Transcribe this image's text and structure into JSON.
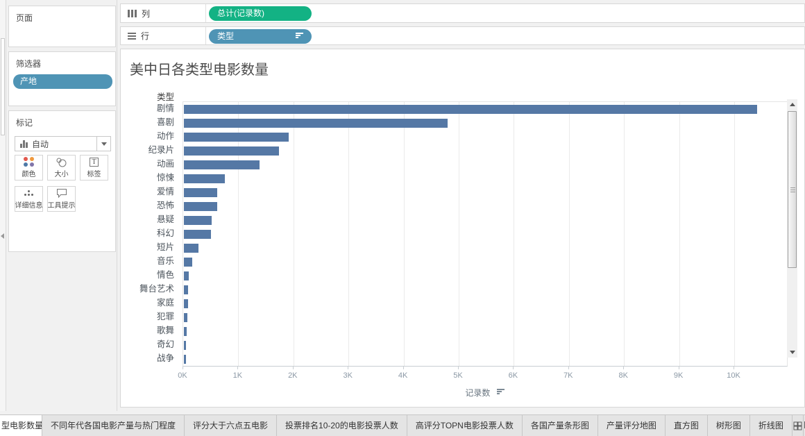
{
  "colors": {
    "measure_pill": "#13b284",
    "dimension_pill": "#4f94b5",
    "bar": "#5578a5"
  },
  "left_panel": {
    "pages": {
      "title": "页面"
    },
    "filters": {
      "title": "筛选器",
      "pill": "产地"
    },
    "marks": {
      "title": "标记",
      "mark_type": "自动",
      "buttons": [
        {
          "label": "颜色",
          "icon": "color-icon"
        },
        {
          "label": "大小",
          "icon": "size-icon"
        },
        {
          "label": "标签",
          "icon": "label-icon"
        },
        {
          "label": "详细信息",
          "icon": "detail-icon"
        },
        {
          "label": "工具提示",
          "icon": "tooltip-icon"
        }
      ],
      "color_dots": [
        "#e2574c",
        "#f0993e",
        "#4e79a7",
        "#8175aa"
      ]
    }
  },
  "shelves": {
    "columns": {
      "label": "列",
      "pill": "总计(记录数)"
    },
    "rows": {
      "label": "行",
      "pill": "类型",
      "sorted": "descending"
    }
  },
  "worksheet": {
    "title": "美中日各类型电影数量",
    "row_header": "类型",
    "axis_label": "记录数"
  },
  "chart_data": {
    "type": "bar",
    "orientation": "horizontal",
    "title": "美中日各类型电影数量",
    "ylabel": "类型",
    "xlabel": "记录数",
    "categories": [
      "剧情",
      "喜剧",
      "动作",
      "纪录片",
      "动画",
      "惊悚",
      "爱情",
      "恐怖",
      "悬疑",
      "科幻",
      "短片",
      "音乐",
      "情色",
      "舞台艺术",
      "家庭",
      "犯罪",
      "歌舞",
      "奇幻",
      "战争"
    ],
    "values": [
      10400,
      4790,
      1900,
      1730,
      1370,
      740,
      610,
      600,
      500,
      490,
      260,
      150,
      90,
      75,
      70,
      60,
      46,
      42,
      42
    ],
    "x_ticks": [
      "0K",
      "1K",
      "2K",
      "3K",
      "4K",
      "5K",
      "6K",
      "7K",
      "8K",
      "9K",
      "10K"
    ],
    "xlim": [
      0,
      10970
    ],
    "grid": true,
    "sort": "descending by 记录数",
    "bar_color": "#5578a5"
  },
  "sheet_tabs": {
    "tabs": [
      {
        "label": "型电影数量",
        "active": true
      },
      {
        "label": "不同年代各国电影产量与热门程度",
        "active": false
      },
      {
        "label": "评分大于六点五电影",
        "active": false
      },
      {
        "label": "投票排名10-20的电影投票人数",
        "active": false
      },
      {
        "label": "高评分TOPN电影投票人数",
        "active": false
      },
      {
        "label": "各国产量条形图",
        "active": false
      },
      {
        "label": "产量评分地图",
        "active": false
      },
      {
        "label": "直方图",
        "active": false
      },
      {
        "label": "树形图",
        "active": false
      },
      {
        "label": "折线图",
        "active": false
      }
    ],
    "actions": [
      {
        "name": "sheet-sorter-icon"
      },
      {
        "name": "new-worksheet-icon"
      },
      {
        "name": "new-dashboard-icon"
      },
      {
        "name": "new-story-icon"
      }
    ]
  }
}
